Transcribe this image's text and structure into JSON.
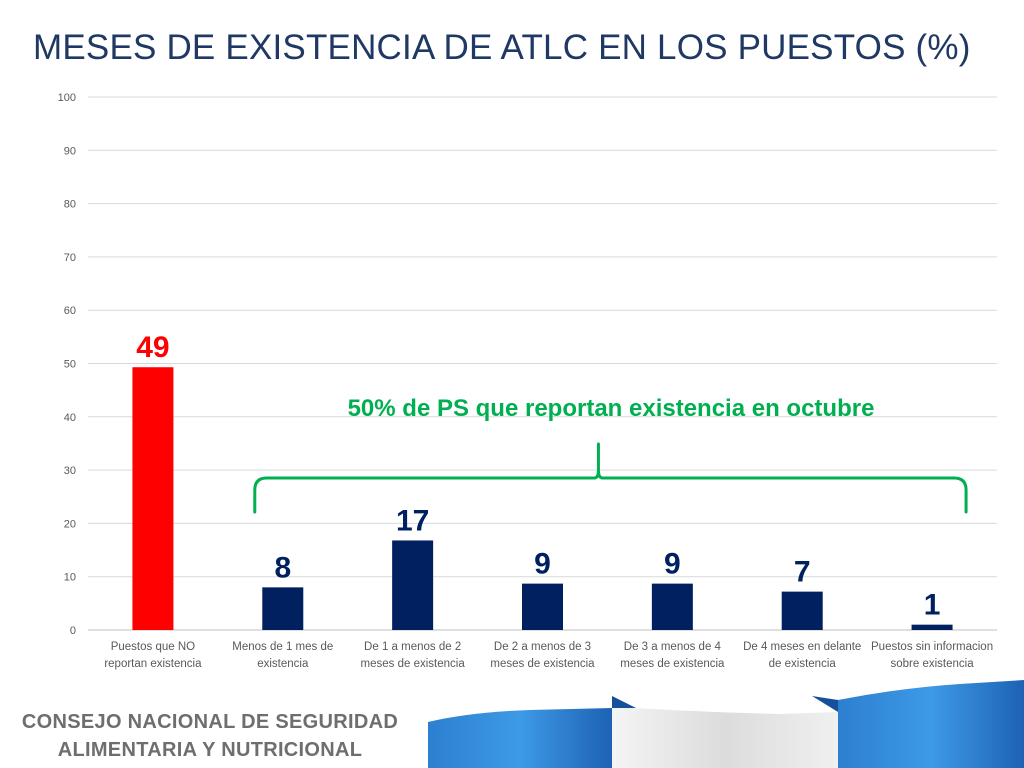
{
  "title": "MESES DE EXISTENCIA DE ATLC EN LOS PUESTOS (%)",
  "chart_data": {
    "type": "bar",
    "categories": [
      [
        "Puestos que NO",
        "reportan existencia"
      ],
      [
        "Menos de 1 mes de",
        "existencia"
      ],
      [
        "De 1 a menos de 2",
        "meses de existencia"
      ],
      [
        "De 2 a menos de 3",
        "meses de existencia"
      ],
      [
        "De 3 a menos de 4",
        "meses de existencia"
      ],
      [
        "De 4 meses en delante",
        "de existencia"
      ],
      [
        "Puestos sin informacion",
        "sobre existencia"
      ]
    ],
    "values": [
      49.3,
      8,
      16.8,
      8.7,
      8.7,
      7.2,
      1
    ],
    "data_labels": [
      "49",
      "8",
      "17",
      "9",
      "9",
      "7",
      "1"
    ],
    "bar_colors": [
      "#ff0000",
      "#002060",
      "#002060",
      "#002060",
      "#002060",
      "#002060",
      "#002060"
    ],
    "label_colors": [
      "#ff0000",
      "#002060",
      "#002060",
      "#002060",
      "#002060",
      "#002060",
      "#002060"
    ],
    "ylim": [
      0,
      100
    ],
    "yticks": [
      0,
      10,
      20,
      30,
      40,
      50,
      60,
      70,
      80,
      90,
      100
    ],
    "grid": true,
    "annotation": {
      "text": "50% de PS que reportan existencia en octubre",
      "color": "#00b050",
      "spans_categories": [
        1,
        6
      ]
    }
  },
  "footer": {
    "line1": "CONSEJO NACIONAL DE SEGURIDAD",
    "line2": "ALIMENTARIA Y NUTRICIONAL"
  },
  "colors": {
    "title": "#1f3864",
    "grid": "#d9d9d9",
    "tick_text": "#595959",
    "accent_blue": "#1f6fc5"
  }
}
